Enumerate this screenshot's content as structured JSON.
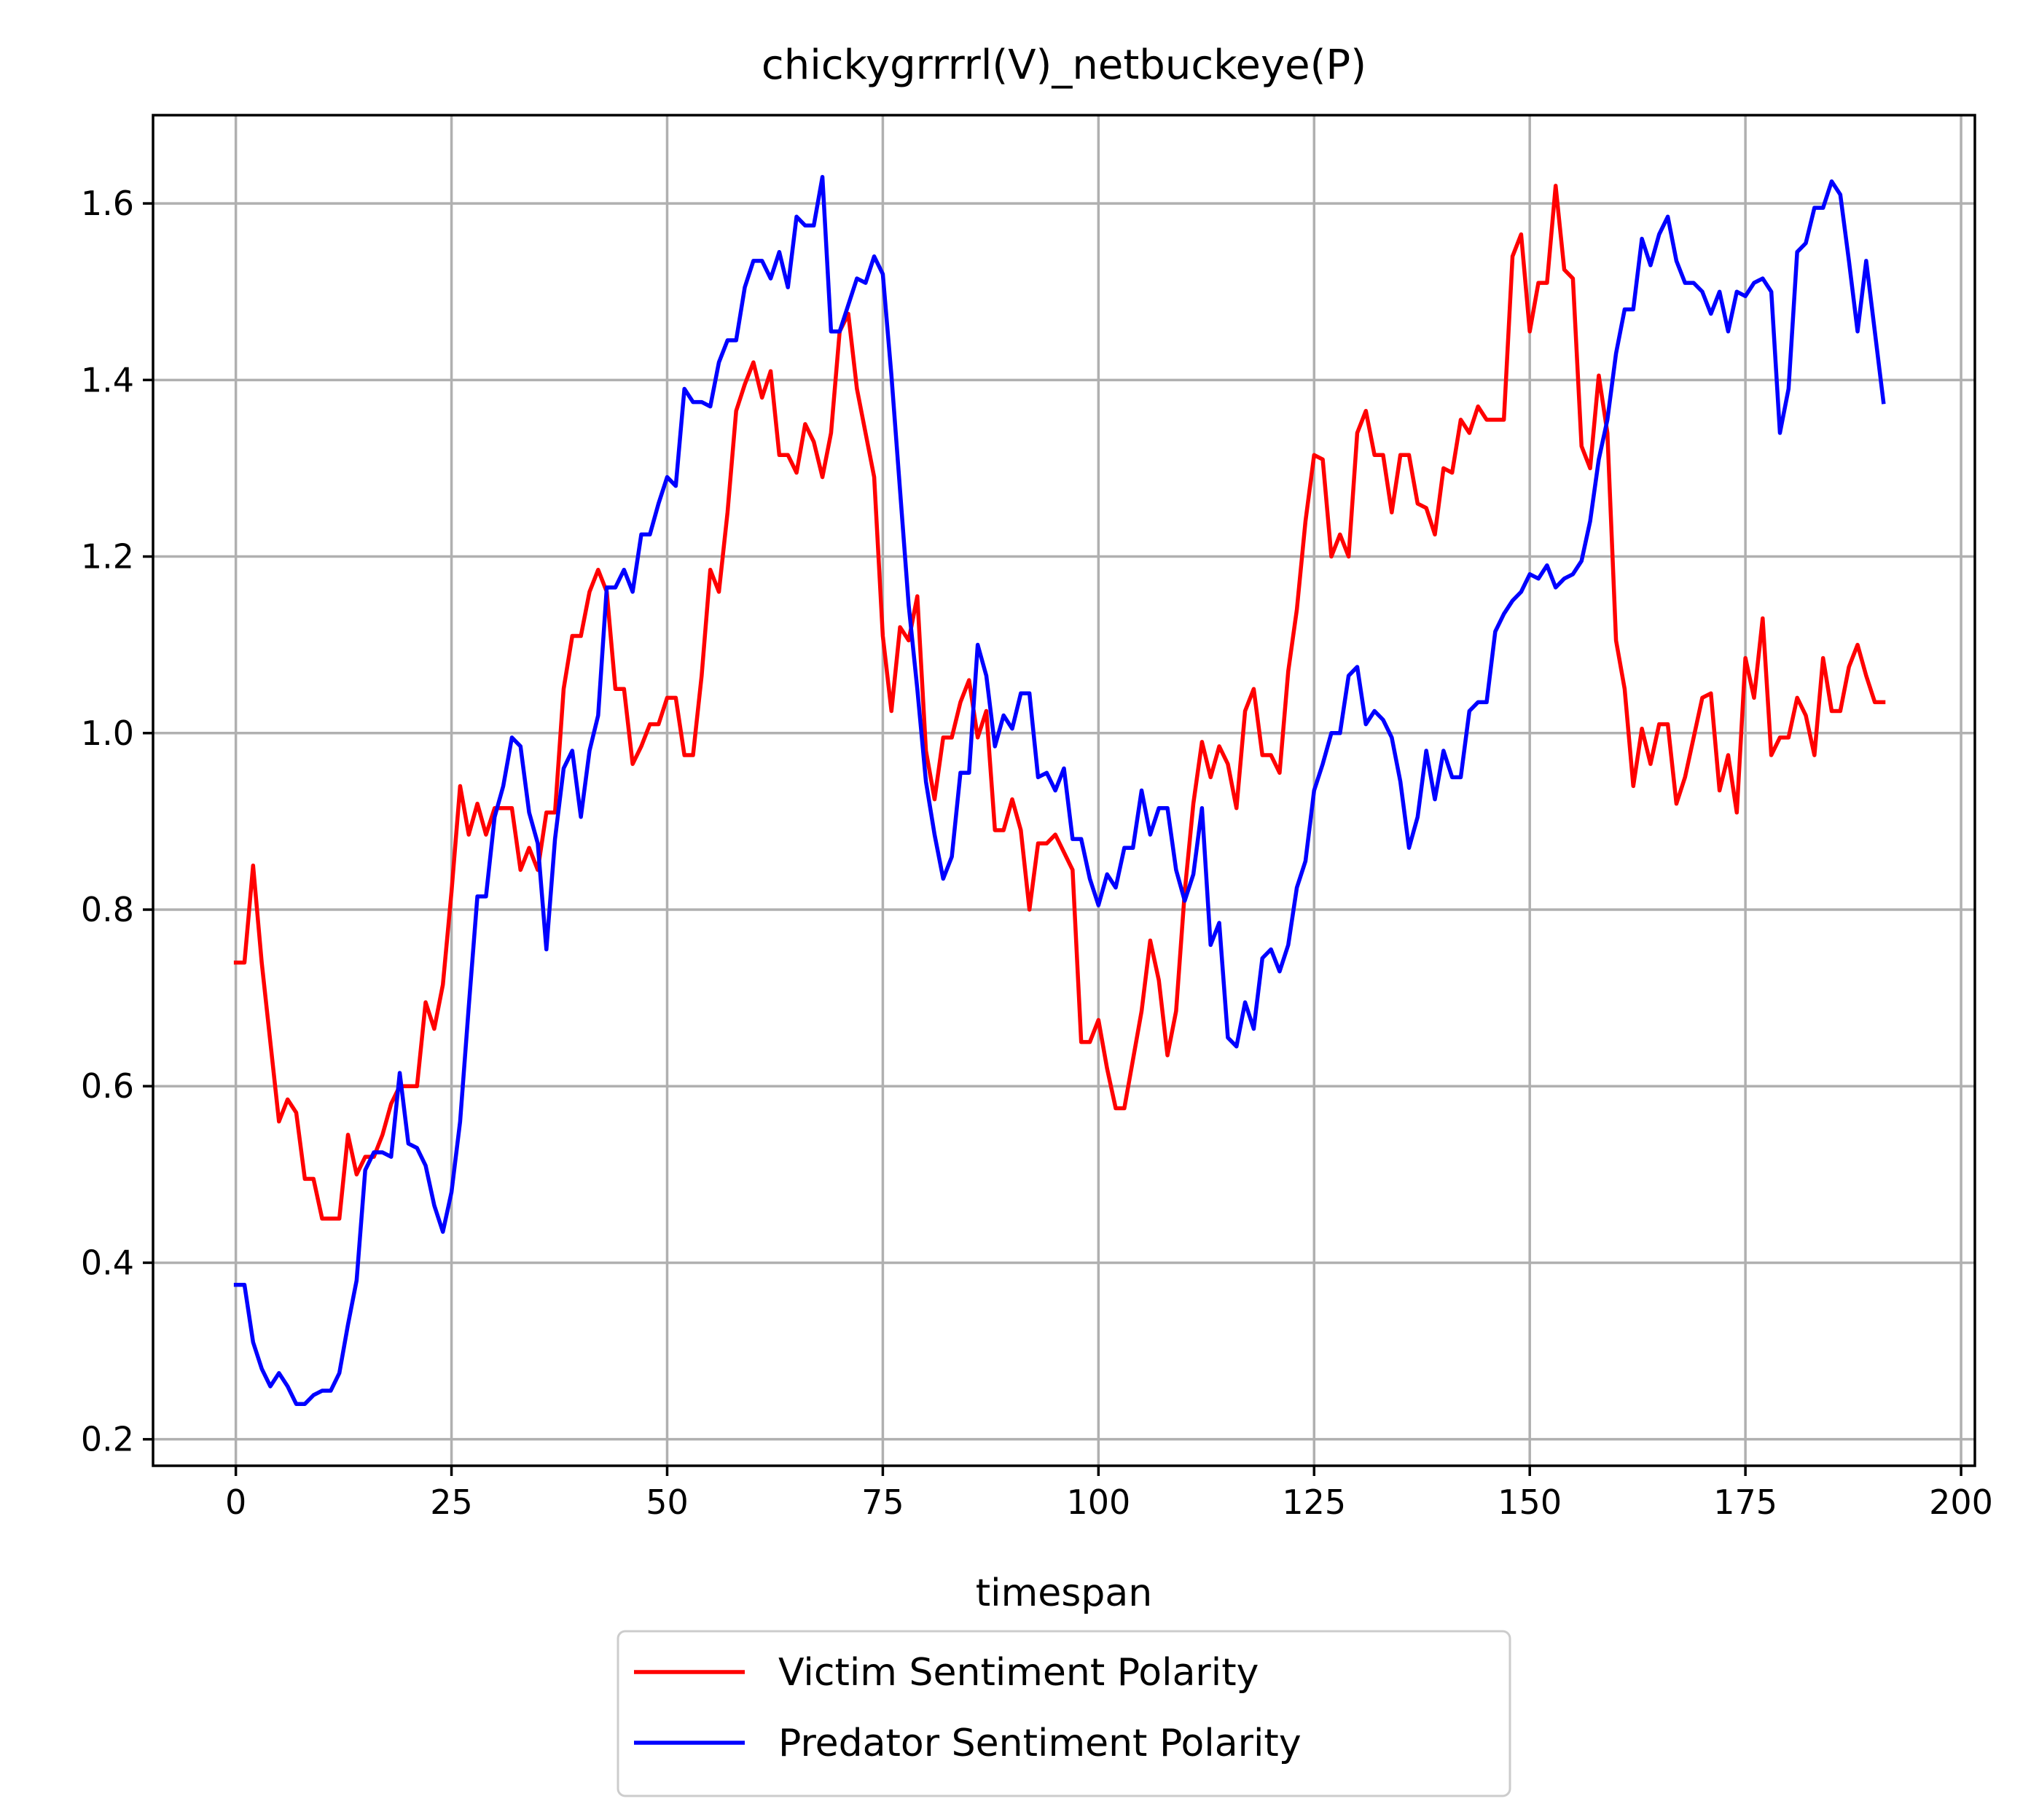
{
  "chart_data": {
    "type": "line",
    "title": "chickygrrrrl(V)_netbuckeye(P)",
    "xlabel": "timespan",
    "ylabel": "",
    "xlim": [
      -9.6,
      201.6
    ],
    "ylim": [
      0.17,
      1.7
    ],
    "xticks": [
      0,
      25,
      50,
      75,
      100,
      125,
      150,
      175,
      200
    ],
    "yticks": [
      0.2,
      0.4,
      0.6,
      0.8,
      1.0,
      1.2,
      1.4,
      1.6
    ],
    "ytick_labels": [
      "0.2",
      "0.4",
      "0.6",
      "0.8",
      "1.0",
      "1.2",
      "1.4",
      "1.6"
    ],
    "grid": true,
    "legend_position": "below-center",
    "series": [
      {
        "name": "Victim Sentiment Polarity",
        "color": "#ff0000",
        "x": [
          0,
          1,
          2,
          3,
          4,
          5,
          6,
          7,
          8,
          9,
          10,
          11,
          12,
          13,
          14,
          15,
          16,
          17,
          18,
          19,
          20,
          21,
          22,
          23,
          24,
          25,
          26,
          27,
          28,
          29,
          30,
          31,
          32,
          33,
          34,
          35,
          36,
          37,
          38,
          39,
          40,
          41,
          42,
          43,
          44,
          45,
          46,
          47,
          48,
          49,
          50,
          51,
          52,
          53,
          54,
          55,
          56,
          57,
          58,
          59,
          60,
          61,
          62,
          63,
          64,
          65,
          66,
          67,
          68,
          69,
          70,
          71,
          72,
          73,
          74,
          75,
          76,
          77,
          78,
          79,
          80,
          81,
          82,
          83,
          84,
          85,
          86,
          87,
          88,
          89,
          90,
          91,
          92,
          93,
          94,
          95,
          96,
          97,
          98,
          99,
          100,
          101,
          102,
          103,
          104,
          105,
          106,
          107,
          108,
          109,
          110,
          111,
          112,
          113,
          114,
          115,
          116,
          117,
          118,
          119,
          120,
          121,
          122,
          123,
          124,
          125,
          126,
          127,
          128,
          129,
          130,
          131,
          132,
          133,
          134,
          135,
          136,
          137,
          138,
          139,
          140,
          141,
          142,
          143,
          144,
          145,
          146,
          147,
          148,
          149,
          150,
          151,
          152,
          153,
          154,
          155,
          156,
          157,
          158,
          159,
          160,
          161,
          162,
          163,
          164,
          165,
          166,
          167,
          168,
          169,
          170,
          171,
          172,
          173,
          174,
          175,
          176,
          177,
          178,
          179,
          180,
          181,
          182,
          183,
          184,
          185,
          186,
          187,
          188,
          189,
          190,
          191
        ],
        "values": [
          0.74,
          0.74,
          0.85,
          0.74,
          0.65,
          0.56,
          0.585,
          0.57,
          0.495,
          0.495,
          0.45,
          0.45,
          0.45,
          0.545,
          0.5,
          0.52,
          0.52,
          0.545,
          0.58,
          0.6,
          0.6,
          0.6,
          0.695,
          0.665,
          0.715,
          0.82,
          0.94,
          0.885,
          0.92,
          0.885,
          0.915,
          0.915,
          0.915,
          0.845,
          0.87,
          0.845,
          0.91,
          0.91,
          1.05,
          1.11,
          1.11,
          1.16,
          1.185,
          1.16,
          1.05,
          1.05,
          0.965,
          0.985,
          1.01,
          1.01,
          1.04,
          1.04,
          0.975,
          0.975,
          1.065,
          1.185,
          1.16,
          1.25,
          1.365,
          1.395,
          1.42,
          1.38,
          1.41,
          1.315,
          1.315,
          1.295,
          1.35,
          1.33,
          1.29,
          1.34,
          1.455,
          1.475,
          1.39,
          1.34,
          1.29,
          1.11,
          1.025,
          1.12,
          1.105,
          1.155,
          0.98,
          0.925,
          0.995,
          0.995,
          1.035,
          1.06,
          0.995,
          1.025,
          0.89,
          0.89,
          0.925,
          0.89,
          0.8,
          0.875,
          0.875,
          0.885,
          0.865,
          0.845,
          0.65,
          0.65,
          0.675,
          0.62,
          0.575,
          0.575,
          0.63,
          0.685,
          0.765,
          0.72,
          0.635,
          0.685,
          0.82,
          0.92,
          0.99,
          0.95,
          0.985,
          0.965,
          0.915,
          1.025,
          1.05,
          0.975,
          0.975,
          0.955,
          1.07,
          1.14,
          1.24,
          1.315,
          1.31,
          1.2,
          1.225,
          1.2,
          1.34,
          1.365,
          1.315,
          1.315,
          1.25,
          1.315,
          1.315,
          1.26,
          1.255,
          1.225,
          1.3,
          1.295,
          1.355,
          1.34,
          1.37,
          1.355,
          1.355,
          1.355,
          1.54,
          1.565,
          1.455,
          1.51,
          1.51,
          1.62,
          1.525,
          1.515,
          1.325,
          1.3,
          1.405,
          1.34,
          1.105,
          1.05,
          0.94,
          1.005,
          0.965,
          1.01,
          1.01,
          0.92,
          0.95,
          0.995,
          1.04,
          1.045,
          0.935,
          0.975,
          0.91,
          1.085,
          1.04,
          1.13,
          0.975,
          0.995,
          0.995,
          1.04,
          1.02,
          0.975,
          1.085,
          1.025,
          1.025,
          1.075,
          1.1,
          1.065,
          1.035,
          1.035
        ]
      },
      {
        "name": "Predator Sentiment Polarity",
        "color": "#0000ff",
        "x": [
          0,
          1,
          2,
          3,
          4,
          5,
          6,
          7,
          8,
          9,
          10,
          11,
          12,
          13,
          14,
          15,
          16,
          17,
          18,
          19,
          20,
          21,
          22,
          23,
          24,
          25,
          26,
          27,
          28,
          29,
          30,
          31,
          32,
          33,
          34,
          35,
          36,
          37,
          38,
          39,
          40,
          41,
          42,
          43,
          44,
          45,
          46,
          47,
          48,
          49,
          50,
          51,
          52,
          53,
          54,
          55,
          56,
          57,
          58,
          59,
          60,
          61,
          62,
          63,
          64,
          65,
          66,
          67,
          68,
          69,
          70,
          71,
          72,
          73,
          74,
          75,
          76,
          77,
          78,
          79,
          80,
          81,
          82,
          83,
          84,
          85,
          86,
          87,
          88,
          89,
          90,
          91,
          92,
          93,
          94,
          95,
          96,
          97,
          98,
          99,
          100,
          101,
          102,
          103,
          104,
          105,
          106,
          107,
          108,
          109,
          110,
          111,
          112,
          113,
          114,
          115,
          116,
          117,
          118,
          119,
          120,
          121,
          122,
          123,
          124,
          125,
          126,
          127,
          128,
          129,
          130,
          131,
          132,
          133,
          134,
          135,
          136,
          137,
          138,
          139,
          140,
          141,
          142,
          143,
          144,
          145,
          146,
          147,
          148,
          149,
          150,
          151,
          152,
          153,
          154,
          155,
          156,
          157,
          158,
          159,
          160,
          161,
          162,
          163,
          164,
          165,
          166,
          167,
          168,
          169,
          170,
          171,
          172,
          173,
          174,
          175,
          176,
          177,
          178,
          179,
          180,
          181,
          182,
          183,
          184,
          185,
          186,
          187,
          188,
          189,
          190,
          191
        ],
        "values": [
          0.375,
          0.375,
          0.31,
          0.28,
          0.26,
          0.275,
          0.26,
          0.24,
          0.24,
          0.25,
          0.255,
          0.255,
          0.275,
          0.33,
          0.38,
          0.505,
          0.525,
          0.525,
          0.52,
          0.615,
          0.535,
          0.53,
          0.51,
          0.465,
          0.435,
          0.48,
          0.56,
          0.69,
          0.815,
          0.815,
          0.905,
          0.94,
          0.995,
          0.985,
          0.91,
          0.875,
          0.755,
          0.88,
          0.96,
          0.98,
          0.905,
          0.98,
          1.02,
          1.165,
          1.165,
          1.185,
          1.16,
          1.225,
          1.225,
          1.26,
          1.29,
          1.28,
          1.39,
          1.375,
          1.375,
          1.37,
          1.42,
          1.445,
          1.445,
          1.505,
          1.535,
          1.535,
          1.515,
          1.545,
          1.505,
          1.585,
          1.575,
          1.575,
          1.63,
          1.455,
          1.455,
          1.485,
          1.515,
          1.51,
          1.54,
          1.52,
          1.405,
          1.275,
          1.145,
          1.05,
          0.945,
          0.885,
          0.835,
          0.86,
          0.955,
          0.955,
          1.1,
          1.065,
          0.985,
          1.02,
          1.005,
          1.045,
          1.045,
          0.95,
          0.955,
          0.935,
          0.96,
          0.88,
          0.88,
          0.835,
          0.805,
          0.84,
          0.825,
          0.87,
          0.87,
          0.935,
          0.885,
          0.915,
          0.915,
          0.845,
          0.81,
          0.84,
          0.915,
          0.76,
          0.785,
          0.655,
          0.645,
          0.695,
          0.665,
          0.745,
          0.755,
          0.73,
          0.76,
          0.825,
          0.855,
          0.935,
          0.965,
          1.0,
          1.0,
          1.065,
          1.075,
          1.01,
          1.025,
          1.015,
          0.995,
          0.945,
          0.87,
          0.905,
          0.98,
          0.925,
          0.98,
          0.95,
          0.95,
          1.025,
          1.035,
          1.035,
          1.115,
          1.135,
          1.15,
          1.16,
          1.18,
          1.175,
          1.19,
          1.165,
          1.175,
          1.18,
          1.195,
          1.24,
          1.31,
          1.355,
          1.43,
          1.48,
          1.48,
          1.56,
          1.53,
          1.565,
          1.585,
          1.535,
          1.51,
          1.51,
          1.5,
          1.475,
          1.5,
          1.455,
          1.5,
          1.495,
          1.51,
          1.515,
          1.5,
          1.34,
          1.39,
          1.545,
          1.555,
          1.595,
          1.595,
          1.625,
          1.61,
          1.535,
          1.455,
          1.535,
          1.455,
          1.375
        ]
      }
    ]
  }
}
